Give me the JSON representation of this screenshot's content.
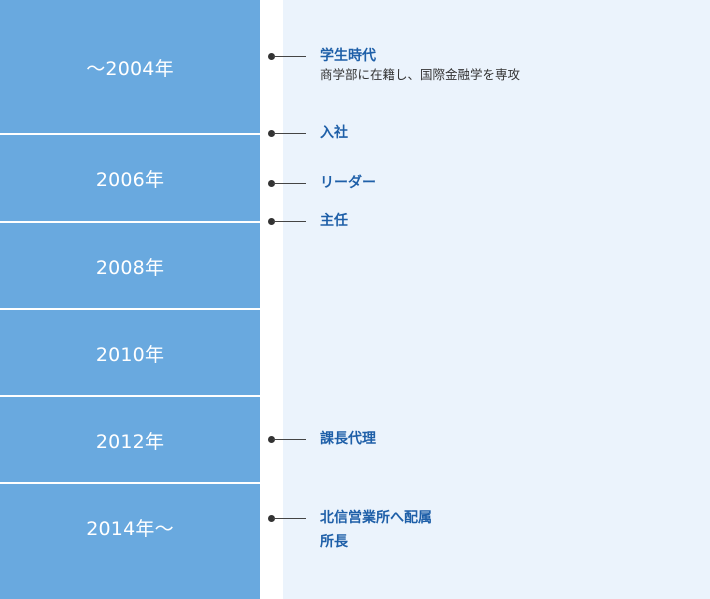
{
  "years": [
    "～2004年",
    "2006年",
    "2008年",
    "2010年",
    "2012年",
    "2014年～"
  ],
  "events": [
    {
      "title": "学生時代",
      "desc": "商学部に在籍し、国際金融学を専攻"
    },
    {
      "title": "入社"
    },
    {
      "title": "リーダー"
    },
    {
      "title": "主任"
    },
    {
      "title": "課長代理"
    },
    {
      "title": "北信営業所へ配属",
      "title2": "所長"
    }
  ],
  "colors": {
    "year_bg": "#69a9df",
    "content_bg": "#ebf3fc",
    "title": "#1e5fa8"
  }
}
